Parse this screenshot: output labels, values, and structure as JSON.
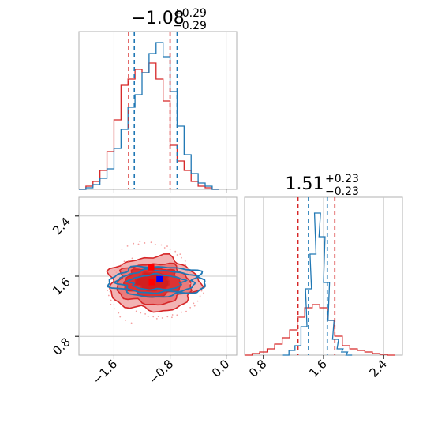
{
  "chart_data": {
    "type": "corner",
    "parameters": [
      {
        "title_value": "−1.08",
        "title_plus": "+0.29",
        "title_minus": "−0.29",
        "median": -1.08,
        "ticks": [
          -1.6,
          -0.8,
          0.0
        ],
        "tick_labels": [
          "−1.6",
          "−0.8",
          "0.0"
        ],
        "range": [
          -2.1,
          0.15
        ]
      },
      {
        "title_value": "1.51",
        "title_plus": "+0.23",
        "title_minus": "−0.23",
        "median": 1.51,
        "ticks": [
          0.8,
          1.6,
          2.4
        ],
        "tick_labels": [
          "0.8",
          "1.6",
          "2.4"
        ],
        "range": [
          0.55,
          2.65
        ]
      }
    ],
    "grid": true,
    "series": [
      {
        "color": "#d62728",
        "quantiles_p1": [
          -1.39,
          -0.8
        ],
        "quantiles_p2": [
          1.26,
          1.75
        ],
        "marker_points": [
          [
            -1.07,
            1.72
          ],
          [
            -1.06,
            1.52
          ]
        ],
        "hist_p1": [
          {
            "x": -2.05,
            "y": 0.0
          },
          {
            "x": -1.95,
            "y": 0.02
          },
          {
            "x": -1.85,
            "y": 0.05
          },
          {
            "x": -1.75,
            "y": 0.12
          },
          {
            "x": -1.65,
            "y": 0.24
          },
          {
            "x": -1.55,
            "y": 0.44
          },
          {
            "x": -1.45,
            "y": 0.66
          },
          {
            "x": -1.35,
            "y": 0.7
          },
          {
            "x": -1.25,
            "y": 0.76
          },
          {
            "x": -1.15,
            "y": 0.74
          },
          {
            "x": -1.05,
            "y": 0.8
          },
          {
            "x": -0.95,
            "y": 0.7
          },
          {
            "x": -0.85,
            "y": 0.56
          },
          {
            "x": -0.75,
            "y": 0.28
          },
          {
            "x": -0.65,
            "y": 0.18
          },
          {
            "x": -0.55,
            "y": 0.12
          },
          {
            "x": -0.45,
            "y": 0.05
          },
          {
            "x": -0.35,
            "y": 0.02
          },
          {
            "x": -0.25,
            "y": 0.01
          },
          {
            "x": -0.15,
            "y": 0.0
          }
        ],
        "hist_p2": [
          {
            "x": 0.6,
            "y": 0.0
          },
          {
            "x": 0.7,
            "y": 0.01
          },
          {
            "x": 0.8,
            "y": 0.02
          },
          {
            "x": 0.9,
            "y": 0.04
          },
          {
            "x": 1.0,
            "y": 0.07
          },
          {
            "x": 1.1,
            "y": 0.11
          },
          {
            "x": 1.2,
            "y": 0.16
          },
          {
            "x": 1.3,
            "y": 0.24
          },
          {
            "x": 1.4,
            "y": 0.3
          },
          {
            "x": 1.5,
            "y": 0.32
          },
          {
            "x": 1.6,
            "y": 0.3
          },
          {
            "x": 1.7,
            "y": 0.22
          },
          {
            "x": 1.8,
            "y": 0.12
          },
          {
            "x": 1.9,
            "y": 0.06
          },
          {
            "x": 2.0,
            "y": 0.04
          },
          {
            "x": 2.1,
            "y": 0.03
          },
          {
            "x": 2.2,
            "y": 0.02
          },
          {
            "x": 2.3,
            "y": 0.01
          },
          {
            "x": 2.4,
            "y": 0.005
          },
          {
            "x": 2.5,
            "y": 0.0
          }
        ],
        "contours": [
          {
            "cx": -1.04,
            "cy": 1.5,
            "rx": 0.64,
            "ry": 0.36,
            "fill": "#f2b3b3"
          },
          {
            "cx": -1.04,
            "cy": 1.5,
            "rx": 0.52,
            "ry": 0.27,
            "fill": "#e97b7b"
          },
          {
            "cx": -1.05,
            "cy": 1.52,
            "rx": 0.4,
            "ry": 0.19,
            "fill": "#dd3333"
          },
          {
            "cx": -1.05,
            "cy": 1.53,
            "rx": 0.24,
            "ry": 0.12,
            "fill": "#d11f1f"
          }
        ]
      },
      {
        "color": "#1f77b4",
        "quantiles_p1": [
          -1.31,
          -0.7
        ],
        "quantiles_p2": [
          1.4,
          1.65
        ],
        "marker_points": [
          [
            -0.95,
            1.56
          ]
        ],
        "hist_p1": [
          {
            "x": -2.05,
            "y": 0.0
          },
          {
            "x": -1.95,
            "y": 0.01
          },
          {
            "x": -1.85,
            "y": 0.03
          },
          {
            "x": -1.75,
            "y": 0.07
          },
          {
            "x": -1.65,
            "y": 0.13
          },
          {
            "x": -1.55,
            "y": 0.26
          },
          {
            "x": -1.45,
            "y": 0.38
          },
          {
            "x": -1.35,
            "y": 0.52
          },
          {
            "x": -1.25,
            "y": 0.6
          },
          {
            "x": -1.15,
            "y": 0.74
          },
          {
            "x": -1.05,
            "y": 0.86
          },
          {
            "x": -0.95,
            "y": 0.93
          },
          {
            "x": -0.85,
            "y": 0.84
          },
          {
            "x": -0.75,
            "y": 0.62
          },
          {
            "x": -0.65,
            "y": 0.4
          },
          {
            "x": -0.55,
            "y": 0.22
          },
          {
            "x": -0.45,
            "y": 0.1
          },
          {
            "x": -0.35,
            "y": 0.04
          },
          {
            "x": -0.25,
            "y": 0.02
          },
          {
            "x": -0.15,
            "y": 0.0
          }
        ],
        "hist_p2": [
          {
            "x": 1.1,
            "y": 0.0
          },
          {
            "x": 1.18,
            "y": 0.03
          },
          {
            "x": 1.26,
            "y": 0.06
          },
          {
            "x": 1.34,
            "y": 0.18
          },
          {
            "x": 1.4,
            "y": 0.42
          },
          {
            "x": 1.46,
            "y": 0.64
          },
          {
            "x": 1.52,
            "y": 0.9
          },
          {
            "x": 1.58,
            "y": 0.75
          },
          {
            "x": 1.64,
            "y": 0.46
          },
          {
            "x": 1.7,
            "y": 0.22
          },
          {
            "x": 1.76,
            "y": 0.1
          },
          {
            "x": 1.82,
            "y": 0.04
          },
          {
            "x": 1.88,
            "y": 0.02
          },
          {
            "x": 1.94,
            "y": 0.0
          }
        ],
        "contours": [
          {
            "cx": -0.97,
            "cy": 1.53,
            "rx": 0.68,
            "ry": 0.2
          },
          {
            "cx": -0.98,
            "cy": 1.53,
            "rx": 0.55,
            "ry": 0.15
          },
          {
            "cx": -0.99,
            "cy": 1.52,
            "rx": 0.38,
            "ry": 0.1
          }
        ]
      }
    ]
  }
}
